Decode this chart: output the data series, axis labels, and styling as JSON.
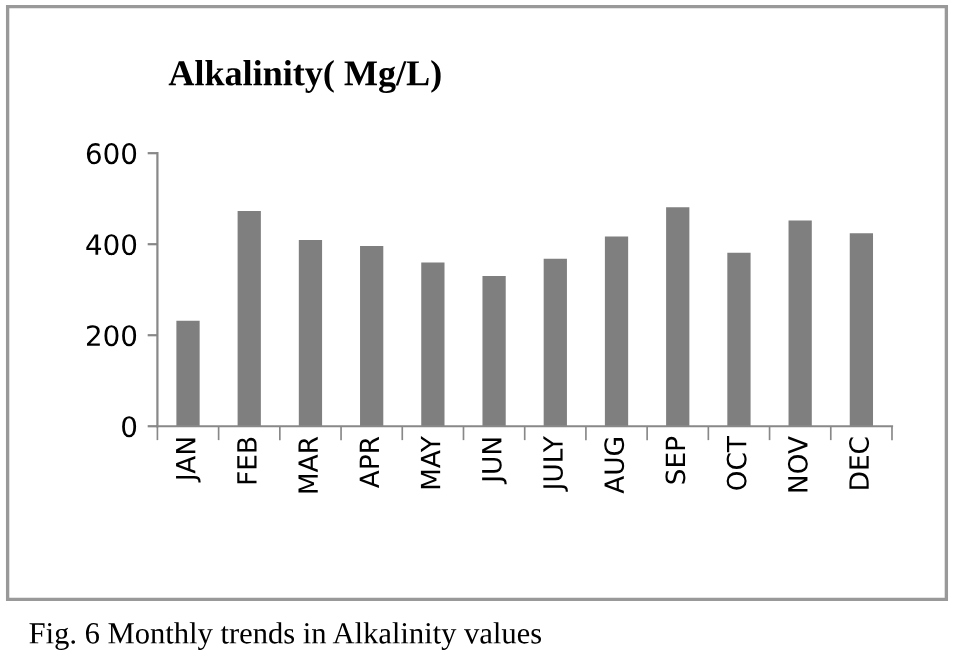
{
  "chart_data": {
    "type": "bar",
    "title": "Alkalinity( Mg/L)",
    "categories": [
      "JAN",
      "FEB",
      "MAR",
      "APR",
      "MAY",
      "JUN",
      "JULY",
      "AUG",
      "SEP",
      "OCT",
      "NOV",
      "DEC"
    ],
    "values": [
      232,
      473,
      409,
      396,
      360,
      330,
      368,
      417,
      481,
      381,
      452,
      424
    ],
    "color": "#7f7f7f",
    "ylim": [
      0,
      600
    ],
    "yticks": [
      0,
      200,
      400,
      600
    ],
    "grid": false,
    "legend": false,
    "annotations": [
      "Fig. 6 Monthly trends in Alkalinity values"
    ]
  }
}
